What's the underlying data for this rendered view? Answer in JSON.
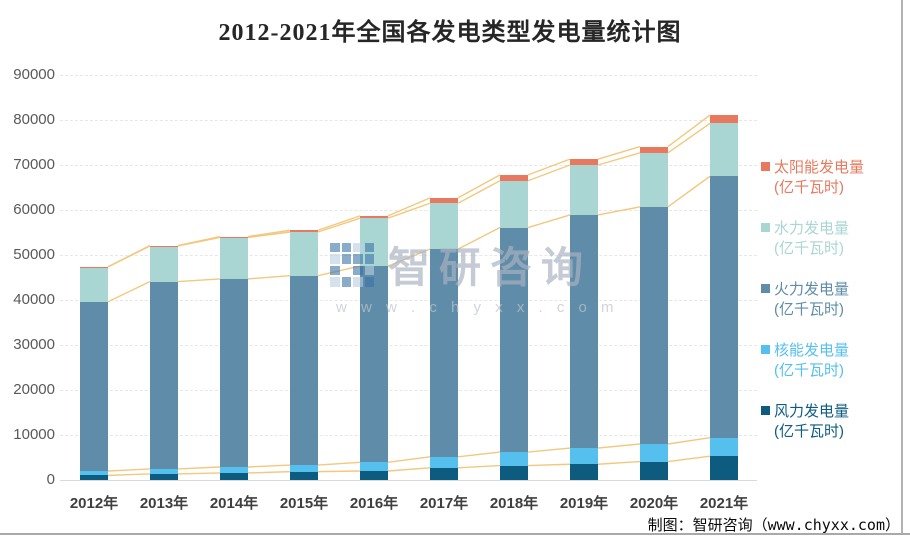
{
  "title": "2012-2021年全国各发电类型发电量统计图",
  "credit": "制图：智研咨询（www.chyxx.com）",
  "watermark": {
    "brand": "智研咨询",
    "url": "w w w . c h y x x . c o m"
  },
  "legend": {
    "items": [
      {
        "label": "太阳能发电量",
        "unit": "(亿千瓦时)",
        "color": "#e8795e"
      },
      {
        "label": "水力发电量",
        "unit": "(亿千瓦时)",
        "color": "#a9d6d3"
      },
      {
        "label": "火力发电量",
        "unit": "(亿千瓦时)",
        "color": "#5f8ca8"
      },
      {
        "label": "核能发电量",
        "unit": "(亿千瓦时)",
        "color": "#55c0ee"
      },
      {
        "label": "风力发电量",
        "unit": "(亿千瓦时)",
        "color": "#0d5c80"
      }
    ]
  },
  "chart_data": {
    "type": "bar",
    "stacked": true,
    "title": "2012-2021年全国各发电类型发电量统计图",
    "categories": [
      "2012年",
      "2013年",
      "2014年",
      "2015年",
      "2016年",
      "2017年",
      "2018年",
      "2019年",
      "2020年",
      "2021年"
    ],
    "series": [
      {
        "name": "风力发电量",
        "unit": "亿千瓦时",
        "color": "#0d5c80",
        "values": [
          1030,
          1350,
          1560,
          1860,
          2000,
          2700,
          3200,
          3500,
          4100,
          5300
        ]
      },
      {
        "name": "核能发电量",
        "unit": "亿千瓦时",
        "color": "#55c0ee",
        "values": [
          970,
          1100,
          1330,
          1450,
          1930,
          2450,
          3000,
          3600,
          3900,
          4100
        ]
      },
      {
        "name": "火力发电量",
        "unit": "亿千瓦时",
        "color": "#5f8ca8",
        "values": [
          37600,
          41650,
          41800,
          42100,
          43600,
          46150,
          49900,
          51800,
          52700,
          58100
        ]
      },
      {
        "name": "水力发电量",
        "unit": "亿千瓦时",
        "color": "#a9d6d3",
        "values": [
          7750,
          7910,
          9200,
          9700,
          10650,
          10200,
          10400,
          11100,
          12000,
          11750
        ]
      },
      {
        "name": "太阳能发电量",
        "unit": "亿千瓦时",
        "color": "#e8795e",
        "values": [
          50,
          90,
          210,
          390,
          520,
          1200,
          1300,
          1300,
          1400,
          1850
        ]
      }
    ],
    "totals": [
      47400,
      52100,
      54100,
      55500,
      58700,
      62700,
      67800,
      71300,
      74100,
      81100
    ],
    "ylabel": "",
    "xlabel": "",
    "ylim": [
      0,
      90000
    ],
    "ytick_step": 10000,
    "yticks": [
      0,
      10000,
      20000,
      30000,
      40000,
      50000,
      60000,
      70000,
      80000,
      90000
    ],
    "grid": true,
    "legend_position": "right",
    "series_lines": true,
    "series_lines_color": "#f3c87e"
  }
}
